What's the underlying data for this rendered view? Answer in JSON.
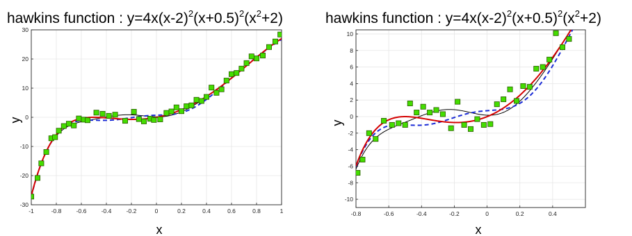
{
  "chart_data": [
    {
      "type": "scatter",
      "title": "hawkins function : y=4x(x-2)2(x+0.5)2(x2+2)",
      "xlabel": "x",
      "ylabel": "y",
      "xlim": [
        -1,
        1
      ],
      "ylim": [
        -30,
        30
      ],
      "xticks": [
        -1,
        -0.8,
        -0.6,
        -0.4,
        -0.2,
        0,
        0.2,
        0.4,
        0.6,
        0.8,
        1
      ],
      "yticks": [
        -30,
        -20,
        -10,
        0,
        10,
        20,
        30
      ],
      "grid": true,
      "colors": {
        "truth": "#d40000",
        "fit_dashed": "#1a2bd6",
        "fit_solid": "#000000",
        "points": "#44dd00"
      },
      "points": {
        "x": [
          -1.0,
          -0.95,
          -0.92,
          -0.88,
          -0.84,
          -0.81,
          -0.78,
          -0.74,
          -0.7,
          -0.66,
          -0.62,
          -0.58,
          -0.55,
          -0.48,
          -0.43,
          -0.38,
          -0.33,
          -0.25,
          -0.18,
          -0.14,
          -0.1,
          -0.05,
          -0.02,
          0.03,
          0.08,
          0.12,
          0.16,
          0.2,
          0.24,
          0.28,
          0.32,
          0.36,
          0.4,
          0.44,
          0.48,
          0.52,
          0.56,
          0.6,
          0.64,
          0.68,
          0.72,
          0.76,
          0.8,
          0.85,
          0.9,
          0.95,
          0.99
        ],
        "y": [
          -27.2,
          -20.8,
          -15.8,
          -11.9,
          -7.2,
          -6.8,
          -4.6,
          -3.0,
          -2.2,
          -2.8,
          -0.4,
          -0.8,
          -1.0,
          1.6,
          1.2,
          0.5,
          0.9,
          -1.2,
          1.9,
          -0.6,
          -1.4,
          -0.5,
          -0.9,
          -0.7,
          1.5,
          2.0,
          3.4,
          2.1,
          3.8,
          4.1,
          6.0,
          5.6,
          7.0,
          10.2,
          8.4,
          9.6,
          12.6,
          14.8,
          15.2,
          16.7,
          18.6,
          20.9,
          20.2,
          21.2,
          24.1,
          26.0,
          28.4
        ]
      }
    },
    {
      "type": "scatter",
      "title": "hawkins function : y=4x(x-2)2(x+0.5)2(x2+2)",
      "xlabel": "x",
      "ylabel": "y",
      "xlim": [
        -0.8,
        0.6
      ],
      "ylim": [
        -11,
        10.5
      ],
      "xticks": [
        -0.8,
        -0.6,
        -0.4,
        -0.2,
        0,
        0.2,
        0.4
      ],
      "yticks": [
        -10,
        -8,
        -6,
        -4,
        -2,
        0,
        2,
        4,
        6,
        8,
        10
      ],
      "grid": true,
      "colors": {
        "truth": "#d40000",
        "fit_dashed": "#1a2bd6",
        "fit_solid": "#000000",
        "points": "#44dd00"
      },
      "points": {
        "x": [
          -0.79,
          -0.76,
          -0.72,
          -0.68,
          -0.63,
          -0.58,
          -0.54,
          -0.5,
          -0.47,
          -0.43,
          -0.39,
          -0.35,
          -0.31,
          -0.27,
          -0.22,
          -0.18,
          -0.14,
          -0.1,
          -0.06,
          -0.02,
          0.02,
          0.06,
          0.1,
          0.14,
          0.18,
          0.22,
          0.26,
          0.3,
          0.34,
          0.38,
          0.42,
          0.46,
          0.5
        ],
        "y": [
          -6.8,
          -5.2,
          -2.0,
          -2.7,
          -0.5,
          -1.0,
          -0.8,
          -1.0,
          1.6,
          0.5,
          1.2,
          0.5,
          0.8,
          0.3,
          -1.4,
          1.8,
          -1.0,
          -1.5,
          -0.3,
          -1.0,
          -0.9,
          1.5,
          2.1,
          3.3,
          1.9,
          3.7,
          3.6,
          5.8,
          6.0,
          6.9,
          10.1,
          8.4,
          9.4
        ]
      }
    }
  ]
}
